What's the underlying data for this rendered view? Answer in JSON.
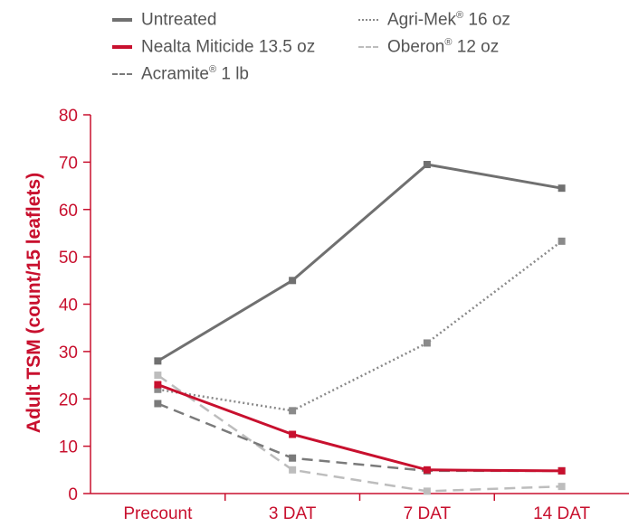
{
  "chart_data": {
    "type": "line",
    "title": "",
    "xlabel": "",
    "ylabel": "Adult TSM (count/15 leaflets)",
    "ylim": [
      0,
      80
    ],
    "yticks": [
      0,
      10,
      20,
      30,
      40,
      50,
      60,
      70,
      80
    ],
    "categories": [
      "Precount",
      "3 DAT",
      "7 DAT",
      "14 DAT"
    ],
    "legend_placement": "top",
    "grid": false,
    "accent_color": "#c8102e",
    "series": [
      {
        "name": "Untreated",
        "base": "Untreated",
        "mark": "",
        "rest": "",
        "values": [
          28,
          45,
          69.5,
          64.5
        ],
        "color": "#707070",
        "dash": "solid",
        "width": 3
      },
      {
        "name": "Nealta Miticide 13.5 oz",
        "base": "Nealta Miticide 13.5 oz",
        "mark": "",
        "rest": "",
        "values": [
          23,
          12.5,
          5,
          4.8
        ],
        "color": "#c8102e",
        "dash": "solid",
        "width": 3
      },
      {
        "name": "Acramite® 1 lb",
        "base": "Acramite",
        "mark": "®",
        "rest": " 1 lb",
        "values": [
          19,
          7.5,
          4.8,
          4.8
        ],
        "color": "#7a7a7a",
        "dash": "dashed",
        "width": 2.5
      },
      {
        "name": "Agri-Mek® 16 oz",
        "base": "Agri-Mek",
        "mark": "®",
        "rest": " 16 oz",
        "values": [
          22,
          17.5,
          31.8,
          53.3
        ],
        "color": "#8a8a8a",
        "dash": "dotted",
        "width": 2.5
      },
      {
        "name": "Oberon® 12 oz",
        "base": "Oberon",
        "mark": "®",
        "rest": " 12 oz",
        "values": [
          25,
          5,
          0.5,
          1.5
        ],
        "color": "#bdbdbd",
        "dash": "dashed",
        "width": 2.5
      }
    ]
  }
}
